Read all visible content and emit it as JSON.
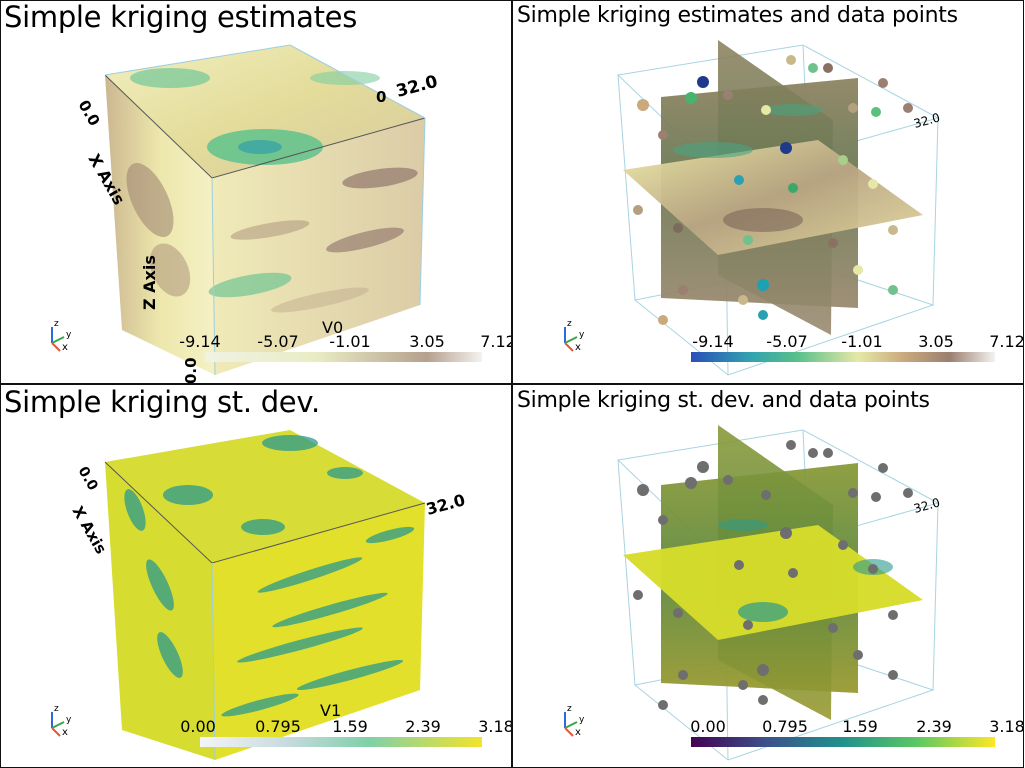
{
  "panels": [
    {
      "title": "Simple kriging estimates",
      "scalar_name": "V0",
      "ticks": [
        "-9.14",
        "-5.07",
        "-1.01",
        "3.05",
        "7.12"
      ],
      "axis_labels": [
        "0.0",
        "32.0",
        "X Axis",
        "Z Axis",
        "0.0"
      ],
      "colormap": "gist_earth-like (blue-green-yellow-brown-white)",
      "range": [
        -9.14,
        7.12
      ]
    },
    {
      "title": "Simple kriging estimates and data points",
      "ticks": [
        "-9.14",
        "-5.07",
        "-1.01",
        "3.05",
        "7.12"
      ],
      "axis_labels": [
        "32.0"
      ],
      "colormap": "gist_earth-like",
      "range": [
        -9.14,
        7.12
      ]
    },
    {
      "title": "Simple kriging st. dev.",
      "scalar_name": "V1",
      "ticks": [
        "0.00",
        "0.795",
        "1.59",
        "2.39",
        "3.18"
      ],
      "axis_labels": [
        "0.0",
        "32.0",
        "X Axis"
      ],
      "colormap": "viridis",
      "range": [
        0.0,
        3.18
      ]
    },
    {
      "title": "Simple kriging st. dev. and data points",
      "ticks": [
        "0.00",
        "0.795",
        "1.59",
        "2.39",
        "3.18"
      ],
      "axis_labels": [
        "32.0"
      ],
      "colormap": "viridis",
      "range": [
        0.0,
        3.18
      ]
    }
  ],
  "orientation_widget": {
    "labels": [
      "z",
      "y",
      "x"
    ]
  },
  "colors": {
    "earth_cb": [
      "#2a4fb8",
      "#33a3b0",
      "#58c08a",
      "#e6e8a6",
      "#caa97d",
      "#9b7f70",
      "#f4f2f0"
    ],
    "viridis": [
      "#440154",
      "#3b528b",
      "#21918c",
      "#5ec962",
      "#fde725"
    ]
  }
}
